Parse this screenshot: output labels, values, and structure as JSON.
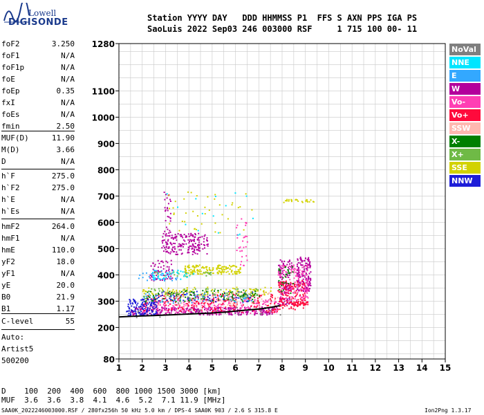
{
  "logo": {
    "line1": "Lowell",
    "line2": "DIGISONDE"
  },
  "header": {
    "line1": "Station YYYY DAY   DDD HHMMSS P1  FFS S AXN PPS IGA PS",
    "line2": "SaoLuis 2022 Sep03 246 003000 RSF     1 715 100 00- 11"
  },
  "params_group1": [
    {
      "name": "foF2",
      "value": "3.250"
    },
    {
      "name": "foF1",
      "value": "N/A"
    },
    {
      "name": "foF1p",
      "value": "N/A"
    },
    {
      "name": "foE",
      "value": "N/A"
    },
    {
      "name": "foEp",
      "value": "0.35"
    },
    {
      "name": "fxI",
      "value": "N/A"
    },
    {
      "name": "foEs",
      "value": "N/A"
    },
    {
      "name": "fmin",
      "value": "2.50"
    }
  ],
  "params_group2": [
    {
      "name": "MUF(D)",
      "value": "11.90"
    },
    {
      "name": "M(D)",
      "value": "3.66"
    },
    {
      "name": "D",
      "value": "N/A"
    }
  ],
  "params_group3": [
    {
      "name": "h`F",
      "value": "275.0"
    },
    {
      "name": "h`F2",
      "value": "275.0"
    },
    {
      "name": "h`E",
      "value": "N/A"
    },
    {
      "name": "h`Es",
      "value": "N/A"
    }
  ],
  "params_group4": [
    {
      "name": "hmF2",
      "value": "264.0"
    },
    {
      "name": "hmF1",
      "value": "N/A"
    },
    {
      "name": "hmE",
      "value": "110.0"
    },
    {
      "name": "yF2",
      "value": "18.0"
    },
    {
      "name": "yF1",
      "value": "N/A"
    },
    {
      "name": "yE",
      "value": "20.0"
    },
    {
      "name": "B0",
      "value": "21.9"
    },
    {
      "name": "B1",
      "value": "1.17"
    }
  ],
  "params_group5": [
    {
      "name": "C-level",
      "value": "55"
    }
  ],
  "auto": {
    "line1": "Auto:",
    "line2": "Artist5",
    "line3": "500200"
  },
  "legend": [
    {
      "label": "NoVal",
      "color": "#7f7f7f"
    },
    {
      "label": "NNE",
      "color": "#00e5ff"
    },
    {
      "label": "E",
      "color": "#33a8ff"
    },
    {
      "label": "W",
      "color": "#b4009c"
    },
    {
      "label": "Vo-",
      "color": "#ff3fb4"
    },
    {
      "label": "Vo+",
      "color": "#ff0a3c"
    },
    {
      "label": "SSW",
      "color": "#ffb8b0"
    },
    {
      "label": "X-",
      "color": "#007f00"
    },
    {
      "label": "X+",
      "color": "#6fba46"
    },
    {
      "label": "SSE",
      "color": "#d2d200"
    },
    {
      "label": "NNW",
      "color": "#1e1ed8"
    }
  ],
  "footer": {
    "d_line": "D    100  200  400  600  800 1000 1500 3000 [km]",
    "muf_line": "MUF  3.6  3.6  3.8  4.1  4.6  5.2  7.1 11.9 [MHz]",
    "file_line": "SAA0K_2022246003000.RSF / 280fx256h 50 kHz 5.0 km / DPS-4 SAA0K 903 / 2.6 S 315.8 E",
    "version": "Ion2Png 1.3.17"
  },
  "chart_data": {
    "type": "scatter",
    "title": "",
    "xlabel": "",
    "ylabel": "",
    "xlim": [
      1,
      15
    ],
    "ylim": [
      80,
      1280
    ],
    "x_ticks": [
      "1",
      "2",
      "3",
      "4",
      "5",
      "6",
      "7",
      "8",
      "9",
      "10",
      "11",
      "12",
      "13",
      "14",
      "15"
    ],
    "y_ticks": [
      "80",
      "200",
      "300",
      "400",
      "500",
      "600",
      "700",
      "800",
      "900",
      "1000",
      "1100",
      "1280"
    ],
    "grid": true,
    "trace_color": "#000000",
    "trace": [
      [
        1.0,
        240
      ],
      [
        1.5,
        242
      ],
      [
        2.0,
        244
      ],
      [
        2.5,
        245
      ],
      [
        3.0,
        247
      ],
      [
        3.5,
        249
      ],
      [
        4.0,
        251
      ],
      [
        4.5,
        253
      ],
      [
        5.0,
        255
      ],
      [
        5.5,
        258
      ],
      [
        6.0,
        262
      ],
      [
        6.5,
        266
      ],
      [
        7.0,
        270
      ],
      [
        7.5,
        276
      ],
      [
        7.9,
        283
      ]
    ],
    "series": [
      {
        "name": "W",
        "color": "#b4009c",
        "clusters": [
          {
            "x0": 2.8,
            "x1": 4.8,
            "y0": 480,
            "y1": 560,
            "n": 180
          },
          {
            "x0": 2.3,
            "x1": 3.3,
            "y0": 380,
            "y1": 460,
            "n": 60
          },
          {
            "x0": 1.5,
            "x1": 7.8,
            "y0": 250,
            "y1": 280,
            "n": 320
          },
          {
            "x0": 8.6,
            "x1": 9.2,
            "y0": 340,
            "y1": 470,
            "n": 160
          },
          {
            "x0": 7.8,
            "x1": 8.4,
            "y0": 290,
            "y1": 460,
            "n": 120
          },
          {
            "x0": 2.9,
            "x1": 3.2,
            "y0": 500,
            "y1": 720,
            "n": 40
          }
        ]
      },
      {
        "name": "Vo-",
        "color": "#ff3fb4",
        "clusters": [
          {
            "x0": 2.0,
            "x1": 7.8,
            "y0": 255,
            "y1": 310,
            "n": 220
          },
          {
            "x0": 7.8,
            "x1": 9.1,
            "y0": 300,
            "y1": 440,
            "n": 150
          },
          {
            "x0": 6.0,
            "x1": 6.5,
            "y0": 420,
            "y1": 620,
            "n": 30
          }
        ]
      },
      {
        "name": "Vo+",
        "color": "#ff0a3c",
        "clusters": [
          {
            "x0": 2.0,
            "x1": 7.8,
            "y0": 260,
            "y1": 330,
            "n": 220
          },
          {
            "x0": 7.8,
            "x1": 9.0,
            "y0": 270,
            "y1": 380,
            "n": 130
          },
          {
            "x0": 8.4,
            "x1": 9.1,
            "y0": 285,
            "y1": 300,
            "n": 40
          }
        ]
      },
      {
        "name": "NNW",
        "color": "#1e1ed8",
        "clusters": [
          {
            "x0": 1.3,
            "x1": 2.6,
            "y0": 245,
            "y1": 310,
            "n": 140
          },
          {
            "x0": 2.5,
            "x1": 6.8,
            "y0": 300,
            "y1": 340,
            "n": 80
          }
        ]
      },
      {
        "name": "SSE",
        "color": "#d2d200",
        "clusters": [
          {
            "x0": 3.8,
            "x1": 6.2,
            "y0": 405,
            "y1": 440,
            "n": 160
          },
          {
            "x0": 2.0,
            "x1": 7.5,
            "y0": 325,
            "y1": 355,
            "n": 110
          },
          {
            "x0": 8.0,
            "x1": 9.4,
            "y0": 678,
            "y1": 690,
            "n": 25
          },
          {
            "x0": 3.0,
            "x1": 6.8,
            "y0": 560,
            "y1": 720,
            "n": 40
          }
        ]
      },
      {
        "name": "X-",
        "color": "#007f00",
        "clusters": [
          {
            "x0": 2.0,
            "x1": 7.0,
            "y0": 300,
            "y1": 345,
            "n": 110
          },
          {
            "x0": 7.8,
            "x1": 8.5,
            "y0": 330,
            "y1": 440,
            "n": 30
          }
        ]
      },
      {
        "name": "X+",
        "color": "#6fba46",
        "clusters": [
          {
            "x0": 2.0,
            "x1": 7.0,
            "y0": 310,
            "y1": 350,
            "n": 70
          },
          {
            "x0": 2.5,
            "x1": 5.0,
            "y0": 395,
            "y1": 415,
            "n": 30
          }
        ]
      },
      {
        "name": "E",
        "color": "#33a8ff",
        "clusters": [
          {
            "x0": 1.8,
            "x1": 3.5,
            "y0": 380,
            "y1": 420,
            "n": 40
          },
          {
            "x0": 2.0,
            "x1": 7.0,
            "y0": 295,
            "y1": 330,
            "n": 40
          }
        ]
      },
      {
        "name": "NNE",
        "color": "#00e5ff",
        "clusters": [
          {
            "x0": 2.4,
            "x1": 4.2,
            "y0": 380,
            "y1": 420,
            "n": 30
          },
          {
            "x0": 3.0,
            "x1": 7.0,
            "y0": 550,
            "y1": 720,
            "n": 15
          }
        ]
      },
      {
        "name": "SSW",
        "color": "#ffb8b0",
        "clusters": [
          {
            "x0": 2.5,
            "x1": 8.0,
            "y0": 280,
            "y1": 340,
            "n": 60
          }
        ]
      },
      {
        "name": "NoVal",
        "color": "#7f7f7f",
        "clusters": [
          {
            "x0": 1.5,
            "x1": 8.0,
            "y0": 240,
            "y1": 330,
            "n": 30
          }
        ]
      }
    ]
  }
}
